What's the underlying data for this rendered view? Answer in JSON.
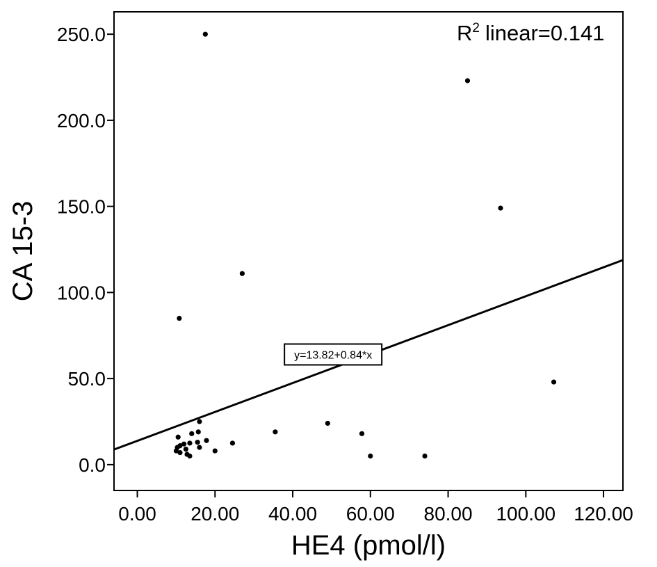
{
  "chart_data": {
    "type": "scatter",
    "xlabel": "HE4 (pmol/l)",
    "ylabel": "CA 15-3",
    "xlim": [
      -6,
      125
    ],
    "ylim": [
      -15,
      263
    ],
    "xticks": [
      0,
      20,
      40,
      60,
      80,
      100,
      120
    ],
    "xtick_labels": [
      "0.00",
      "20.00",
      "40.00",
      "60.00",
      "80.00",
      "100.00",
      "120.00"
    ],
    "yticks": [
      0,
      50,
      100,
      150,
      200,
      250
    ],
    "ytick_labels": [
      "0.0",
      "50.0",
      "100.0",
      "150.0",
      "200.0",
      "250.0"
    ],
    "grid": false,
    "r_squared_text": "linear=0.141",
    "r_squared_prefix": "R",
    "r_squared_sup": "2",
    "fit_line": {
      "intercept": 13.82,
      "slope": 0.84,
      "equation_label": "y=13.82+0.84*x",
      "label_at": [
        50.4,
        64
      ]
    },
    "points": [
      {
        "x": 17.5,
        "y": 250
      },
      {
        "x": 85.0,
        "y": 223
      },
      {
        "x": 93.5,
        "y": 149
      },
      {
        "x": 27.0,
        "y": 111
      },
      {
        "x": 10.8,
        "y": 85
      },
      {
        "x": 107.2,
        "y": 48
      },
      {
        "x": 16.0,
        "y": 25
      },
      {
        "x": 49.0,
        "y": 24
      },
      {
        "x": 35.5,
        "y": 19
      },
      {
        "x": 57.8,
        "y": 18
      },
      {
        "x": 15.7,
        "y": 19
      },
      {
        "x": 14.0,
        "y": 18
      },
      {
        "x": 10.5,
        "y": 16
      },
      {
        "x": 17.8,
        "y": 14
      },
      {
        "x": 15.5,
        "y": 13
      },
      {
        "x": 24.5,
        "y": 12.5
      },
      {
        "x": 13.5,
        "y": 12.5
      },
      {
        "x": 12.0,
        "y": 12
      },
      {
        "x": 11.0,
        "y": 11
      },
      {
        "x": 10.3,
        "y": 10
      },
      {
        "x": 16.0,
        "y": 10
      },
      {
        "x": 12.5,
        "y": 9
      },
      {
        "x": 20.0,
        "y": 8
      },
      {
        "x": 10.0,
        "y": 8
      },
      {
        "x": 11.0,
        "y": 7
      },
      {
        "x": 12.8,
        "y": 6
      },
      {
        "x": 13.5,
        "y": 5
      },
      {
        "x": 60.0,
        "y": 5
      },
      {
        "x": 74.0,
        "y": 5
      }
    ]
  }
}
